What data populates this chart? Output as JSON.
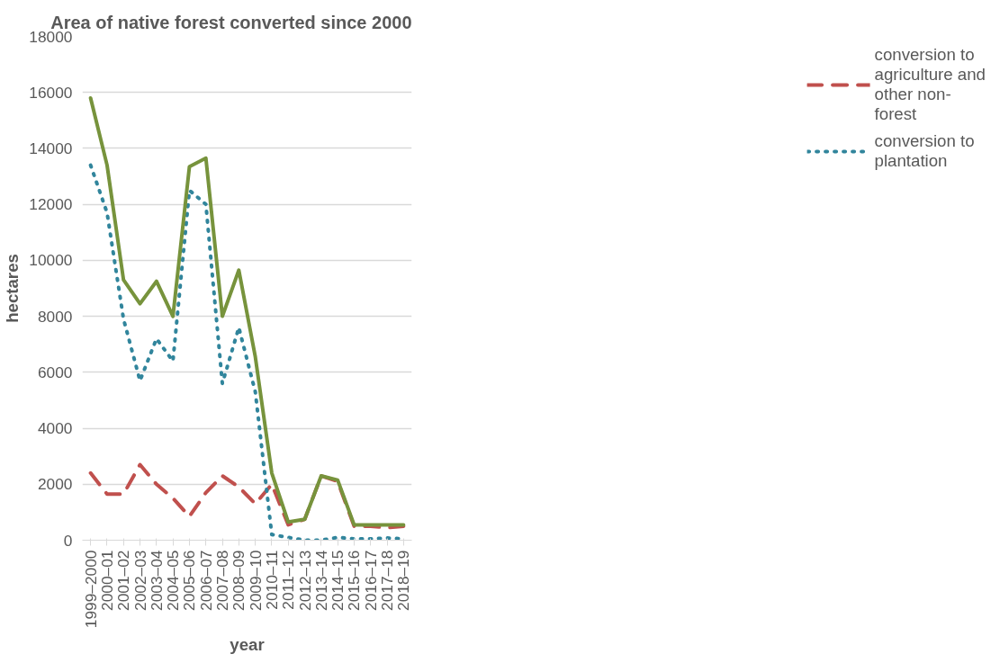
{
  "chart_data": {
    "type": "line",
    "title": "Area of native forest converted since 2000",
    "xlabel": "year",
    "ylabel": "hectares",
    "categories": [
      "1999–2000",
      "2000–01",
      "2001–02",
      "2002–03",
      "2003–04",
      "2004–05",
      "2005–06",
      "2006–07",
      "2007–08",
      "2008–09",
      "2009–10",
      "2010–11",
      "2011–12",
      "2012–13",
      "2013–14",
      "2014–15",
      "2015–16",
      "2016–17",
      "2017–18",
      "2018–19"
    ],
    "series": [
      {
        "name": "conversion to agriculture and other non-forest",
        "color": "#c0504d",
        "line_style": "dashed",
        "values": [
          2400,
          1650,
          1650,
          2700,
          2000,
          1500,
          850,
          1700,
          2300,
          1900,
          1300,
          2000,
          550,
          750,
          2300,
          2100,
          500,
          500,
          450,
          500
        ]
      },
      {
        "name": "conversion to plantation",
        "color": "#31859c",
        "line_style": "dotted",
        "values": [
          13400,
          11700,
          7900,
          5700,
          7200,
          6400,
          12500,
          12000,
          5600,
          7600,
          5300,
          200,
          100,
          0,
          0,
          100,
          50,
          50,
          80,
          50
        ]
      },
      {
        "color": "#77933c",
        "line_style": "solid",
        "values": [
          15800,
          13400,
          9300,
          8450,
          9250,
          8000,
          13350,
          13650,
          8000,
          9650,
          6550,
          2400,
          650,
          750,
          2300,
          2150,
          550,
          550,
          550,
          550
        ]
      }
    ],
    "ylim": [
      0,
      18000
    ],
    "yticks": [
      0,
      2000,
      4000,
      6000,
      8000,
      10000,
      12000,
      14000,
      16000,
      18000
    ],
    "grid": "y",
    "legend": "right"
  }
}
